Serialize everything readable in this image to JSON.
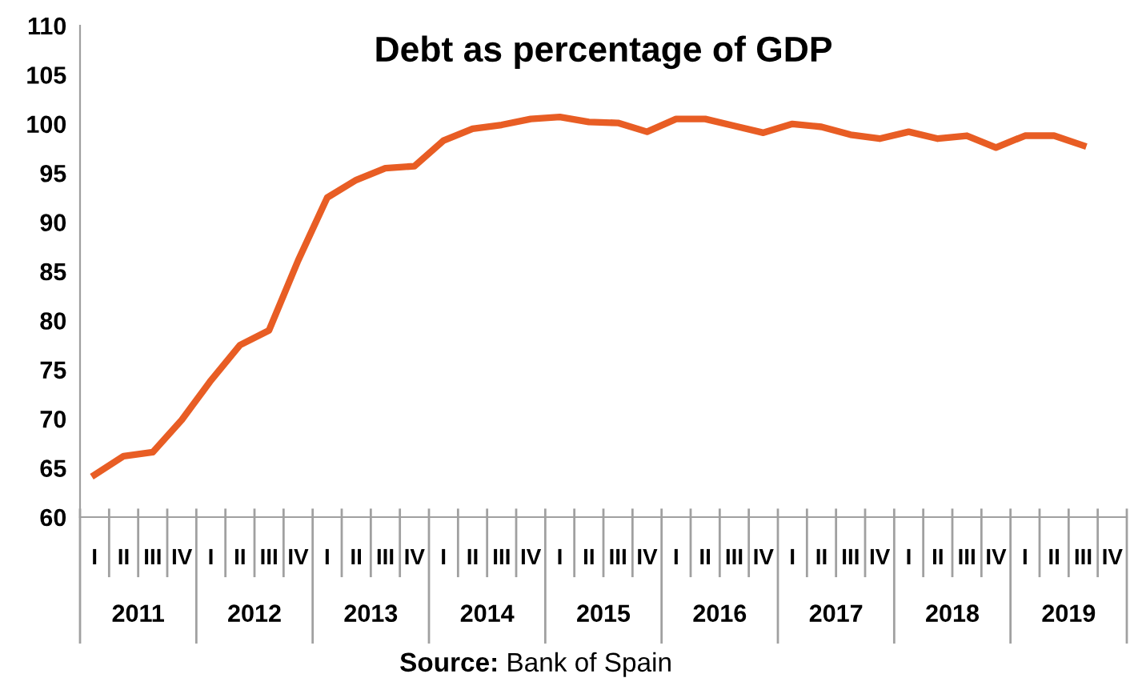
{
  "chart_data": {
    "type": "line",
    "title": "Debt as percentage of GDP",
    "categories": [
      "I",
      "II",
      "III",
      "IV",
      "I",
      "II",
      "III",
      "IV",
      "I",
      "II",
      "III",
      "IV",
      "I",
      "II",
      "III",
      "IV",
      "I",
      "II",
      "III",
      "IV",
      "I",
      "II",
      "III",
      "IV",
      "I",
      "II",
      "III",
      "IV",
      "I",
      "II",
      "III",
      "IV",
      "I",
      "II",
      "III",
      "IV"
    ],
    "series": [
      {
        "color": "#e85d24",
        "values": [
          64.3,
          66.2,
          66.6,
          69.9,
          73.9,
          77.5,
          79.0,
          86.1,
          92.5,
          94.3,
          95.5,
          95.7,
          98.3,
          99.5,
          99.9,
          100.5,
          100.7,
          100.2,
          100.1,
          99.2,
          100.5,
          100.5,
          99.8,
          99.1,
          100.0,
          99.7,
          98.9,
          98.5,
          99.2,
          98.5,
          98.8,
          97.6,
          98.8,
          98.8,
          97.8,
          null
        ]
      }
    ],
    "ylim": [
      60,
      110
    ],
    "yticks": [
      60,
      65,
      70,
      75,
      80,
      85,
      90,
      95,
      100,
      105,
      110
    ],
    "grid": false,
    "legend": false,
    "marker": "none",
    "line_style": "solid",
    "annotations": [
      "2011",
      "2012",
      "2013",
      "2014",
      "2015",
      "2016",
      "2017",
      "2018",
      "2019",
      "Source: Bank of Spain"
    ]
  }
}
